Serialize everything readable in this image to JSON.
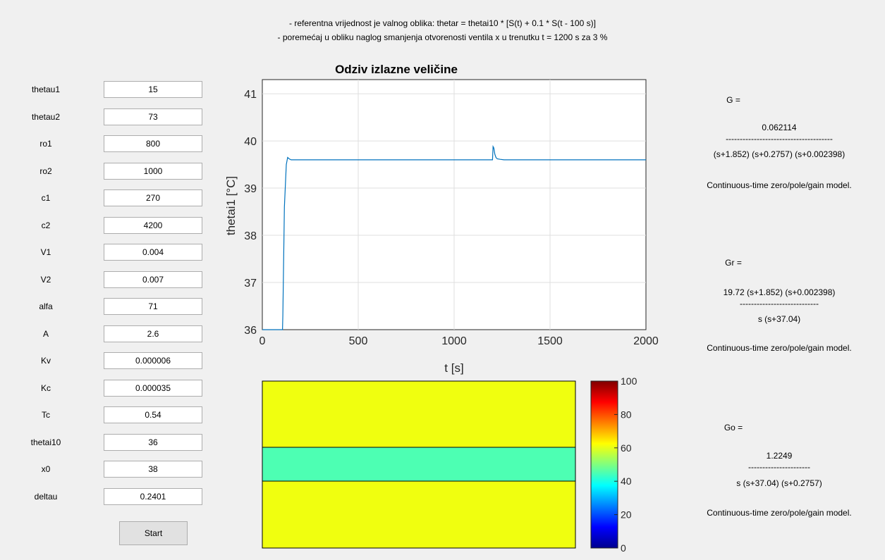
{
  "description": {
    "line1": "- referentna vrijednost je valnog oblika: thetar = thetai10 * [S(t) + 0.1 * S(t - 100 s)]",
    "line2": "- poremećaj u obliku naglog smanjenja otvorenosti ventila x u trenutku t = 1200 s za 3 %"
  },
  "parameters": [
    {
      "label": "thetau1",
      "value": "15"
    },
    {
      "label": "thetau2",
      "value": "73"
    },
    {
      "label": "ro1",
      "value": "800"
    },
    {
      "label": "ro2",
      "value": "1000"
    },
    {
      "label": "c1",
      "value": "270"
    },
    {
      "label": "c2",
      "value": "4200"
    },
    {
      "label": "V1",
      "value": "0.004"
    },
    {
      "label": "V2",
      "value": "0.007"
    },
    {
      "label": "alfa",
      "value": "71"
    },
    {
      "label": "A",
      "value": "2.6"
    },
    {
      "label": "Kv",
      "value": "0.000006"
    },
    {
      "label": "Kc",
      "value": "0.000035"
    },
    {
      "label": "Tc",
      "value": "0.54"
    },
    {
      "label": "thetai10",
      "value": "36"
    },
    {
      "label": "x0",
      "value": "38"
    },
    {
      "label": "deltau",
      "value": "0.2401"
    }
  ],
  "start_label": "Start",
  "chart_data": [
    {
      "type": "line",
      "title": "Odziv izlazne veličine",
      "xlabel": "t [s]",
      "ylabel": "thetai1 [°C]",
      "xlim": [
        0,
        2000
      ],
      "ylim": [
        36,
        41.3
      ],
      "xticks": [
        0,
        500,
        1000,
        1500,
        2000
      ],
      "yticks": [
        36,
        37,
        38,
        39,
        40,
        41
      ],
      "grid": true,
      "line_color": "#0072bd",
      "series": [
        {
          "x": [
            0,
            105,
            107,
            115,
            125,
            132,
            140,
            150,
            160,
            1195,
            1200,
            1203,
            1207,
            1212,
            1218,
            1225,
            1240,
            1260,
            1300,
            2000
          ],
          "y": [
            36,
            36,
            36.3,
            38.6,
            39.5,
            39.65,
            39.62,
            39.6,
            39.6,
            39.6,
            39.6,
            39.88,
            39.85,
            39.72,
            39.65,
            39.62,
            39.61,
            39.6,
            39.6,
            39.6
          ]
        }
      ]
    },
    {
      "type": "heatmap",
      "colorbar": {
        "min": 0,
        "max": 100,
        "ticks": [
          0,
          20,
          40,
          60,
          80,
          100
        ],
        "colormap": "jet"
      },
      "regions": [
        {
          "name": "top",
          "value": 61
        },
        {
          "name": "middle",
          "value": 45
        },
        {
          "name": "bottom",
          "value": 61
        }
      ]
    }
  ],
  "transfer_functions": {
    "G": {
      "label": "G =",
      "numerator": "0.062114",
      "separator": "--------------------------------------",
      "denominator": "(s+1.852) (s+0.2757) (s+0.002398)",
      "note": "Continuous-time zero/pole/gain model."
    },
    "Gr": {
      "label": "Gr =",
      "numerator": "19.72 (s+1.852) (s+0.002398)",
      "separator": "----------------------------",
      "denominator": "s (s+37.04)",
      "note": "Continuous-time zero/pole/gain model."
    },
    "Go": {
      "label": "Go =",
      "numerator": "1.2249",
      "separator": "----------------------",
      "denominator": "s (s+37.04) (s+0.2757)",
      "note": "Continuous-time zero/pole/gain model."
    }
  }
}
